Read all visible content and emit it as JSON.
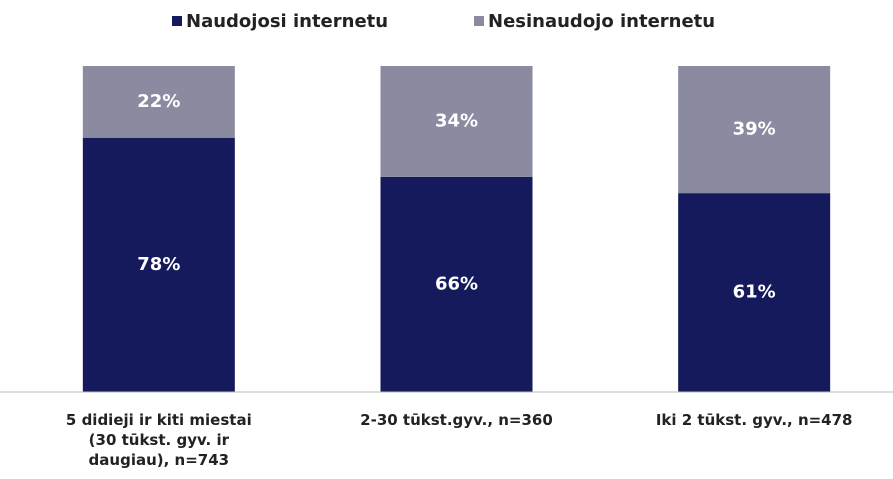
{
  "chart_data": {
    "type": "stacked_bar",
    "categories": [
      "5 didieji ir kiti miestai (30 tūkst. gyv. ir daugiau), n=743",
      "2-30 tūkst.gyv., n=360",
      "Iki 2 tūkst. gyv., n=478"
    ],
    "series": [
      {
        "name": "Naudojosi internetu",
        "color": "#141a5c",
        "values": [
          78,
          66,
          61
        ],
        "value_labels": [
          "78%",
          "66%",
          "61%"
        ]
      },
      {
        "name": "Nesinaudojo internetu",
        "color": "#8a8aa0",
        "values": [
          22,
          34,
          39
        ],
        "value_labels": [
          "22%",
          "34%",
          "39%"
        ]
      }
    ],
    "ylim": [
      0,
      100
    ]
  }
}
